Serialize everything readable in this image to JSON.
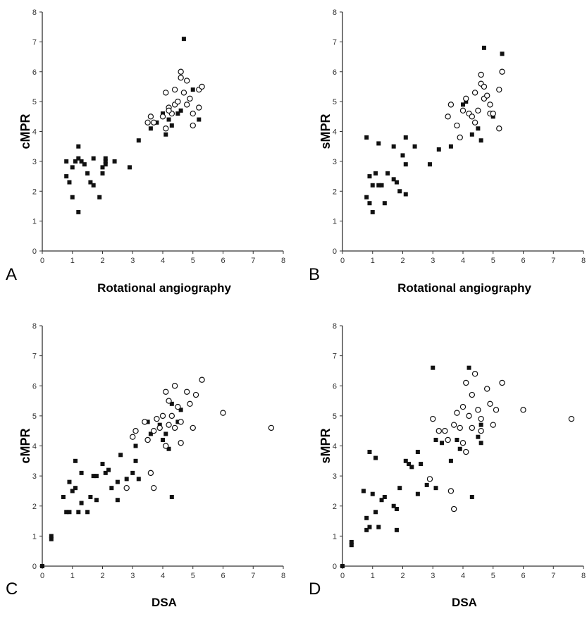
{
  "chart_data": [
    {
      "type": "scatter",
      "panel_label": "A",
      "xlabel": "Rotational angiography",
      "ylabel": "cMPR",
      "xlim": [
        0,
        8
      ],
      "ylim": [
        0,
        8
      ],
      "xticks": [
        "0",
        "1",
        "2",
        "3",
        "4",
        "5",
        "6",
        "7",
        "8"
      ],
      "yticks": [
        "0",
        "1",
        "2",
        "3",
        "4",
        "5",
        "6",
        "7",
        "8"
      ],
      "series": [
        {
          "marker": "filled-square",
          "points": [
            [
              0.8,
              3.0
            ],
            [
              0.8,
              2.5
            ],
            [
              0.9,
              2.3
            ],
            [
              1.0,
              1.8
            ],
            [
              1.0,
              2.8
            ],
            [
              1.1,
              3.0
            ],
            [
              1.2,
              3.1
            ],
            [
              1.2,
              3.5
            ],
            [
              1.2,
              1.3
            ],
            [
              1.3,
              3.0
            ],
            [
              1.4,
              2.9
            ],
            [
              1.5,
              2.6
            ],
            [
              1.6,
              2.3
            ],
            [
              1.7,
              2.2
            ],
            [
              1.7,
              3.1
            ],
            [
              1.9,
              1.8
            ],
            [
              2.0,
              2.6
            ],
            [
              2.0,
              2.8
            ],
            [
              2.1,
              3.0
            ],
            [
              2.1,
              3.1
            ],
            [
              2.1,
              2.9
            ],
            [
              2.4,
              3.0
            ],
            [
              2.9,
              2.8
            ],
            [
              3.2,
              3.7
            ],
            [
              3.6,
              4.1
            ],
            [
              3.8,
              4.3
            ],
            [
              4.0,
              4.6
            ],
            [
              4.1,
              3.9
            ],
            [
              4.2,
              4.4
            ],
            [
              4.3,
              4.2
            ],
            [
              4.5,
              4.6
            ],
            [
              4.6,
              4.7
            ],
            [
              4.7,
              7.1
            ],
            [
              5.0,
              5.4
            ],
            [
              5.2,
              4.4
            ]
          ]
        },
        {
          "marker": "open-circle",
          "points": [
            [
              3.5,
              4.3
            ],
            [
              3.6,
              4.5
            ],
            [
              3.7,
              4.3
            ],
            [
              4.0,
              4.5
            ],
            [
              4.1,
              5.3
            ],
            [
              4.1,
              4.1
            ],
            [
              4.2,
              4.8
            ],
            [
              4.3,
              4.6
            ],
            [
              4.4,
              5.4
            ],
            [
              4.4,
              4.9
            ],
            [
              4.5,
              5.0
            ],
            [
              4.6,
              5.8
            ],
            [
              4.6,
              6.0
            ],
            [
              4.7,
              5.3
            ],
            [
              4.8,
              5.7
            ],
            [
              4.8,
              4.9
            ],
            [
              4.9,
              5.1
            ],
            [
              5.0,
              4.6
            ],
            [
              5.0,
              4.2
            ],
            [
              5.2,
              4.8
            ],
            [
              5.2,
              5.4
            ],
            [
              5.3,
              5.5
            ],
            [
              4.2,
              4.7
            ]
          ]
        }
      ]
    },
    {
      "type": "scatter",
      "panel_label": "B",
      "xlabel": "Rotational angiography",
      "ylabel": "sMPR",
      "xlim": [
        0,
        8
      ],
      "ylim": [
        0,
        8
      ],
      "xticks": [
        "0",
        "1",
        "2",
        "3",
        "4",
        "5",
        "6",
        "7",
        "8"
      ],
      "yticks": [
        "0",
        "1",
        "2",
        "3",
        "4",
        "5",
        "6",
        "7",
        "8"
      ],
      "series": [
        {
          "marker": "filled-square",
          "points": [
            [
              0.8,
              1.8
            ],
            [
              0.8,
              3.8
            ],
            [
              0.9,
              2.5
            ],
            [
              0.9,
              1.6
            ],
            [
              1.0,
              1.3
            ],
            [
              1.0,
              2.2
            ],
            [
              1.1,
              2.6
            ],
            [
              1.2,
              2.2
            ],
            [
              1.2,
              3.6
            ],
            [
              1.3,
              2.2
            ],
            [
              1.4,
              1.6
            ],
            [
              1.5,
              2.6
            ],
            [
              1.7,
              2.4
            ],
            [
              1.7,
              3.5
            ],
            [
              1.8,
              2.3
            ],
            [
              1.9,
              2.0
            ],
            [
              2.0,
              3.2
            ],
            [
              2.1,
              2.9
            ],
            [
              2.1,
              3.8
            ],
            [
              2.1,
              1.9
            ],
            [
              2.4,
              3.5
            ],
            [
              2.9,
              2.9
            ],
            [
              3.2,
              3.4
            ],
            [
              3.6,
              3.5
            ],
            [
              4.0,
              4.9
            ],
            [
              4.1,
              5.0
            ],
            [
              4.3,
              3.9
            ],
            [
              4.5,
              4.1
            ],
            [
              4.6,
              3.7
            ],
            [
              4.7,
              6.8
            ],
            [
              5.0,
              4.5
            ],
            [
              5.3,
              6.6
            ]
          ]
        },
        {
          "marker": "open-circle",
          "points": [
            [
              3.5,
              4.5
            ],
            [
              3.6,
              4.9
            ],
            [
              3.8,
              4.2
            ],
            [
              3.9,
              3.8
            ],
            [
              4.0,
              4.7
            ],
            [
              4.1,
              5.1
            ],
            [
              4.2,
              4.6
            ],
            [
              4.3,
              4.5
            ],
            [
              4.4,
              5.3
            ],
            [
              4.5,
              4.7
            ],
            [
              4.6,
              5.6
            ],
            [
              4.6,
              5.9
            ],
            [
              4.7,
              5.1
            ],
            [
              4.8,
              5.2
            ],
            [
              4.9,
              4.9
            ],
            [
              4.9,
              4.6
            ],
            [
              5.0,
              4.6
            ],
            [
              5.2,
              4.1
            ],
            [
              5.2,
              5.4
            ],
            [
              5.3,
              6.0
            ],
            [
              4.7,
              5.5
            ],
            [
              4.4,
              4.3
            ]
          ]
        }
      ]
    },
    {
      "type": "scatter",
      "panel_label": "C",
      "xlabel": "DSA",
      "ylabel": "cMPR",
      "xlim": [
        0,
        8
      ],
      "ylim": [
        0,
        8
      ],
      "xticks": [
        "0",
        "1",
        "2",
        "3",
        "4",
        "5",
        "6",
        "7",
        "8"
      ],
      "yticks": [
        "0",
        "1",
        "2",
        "3",
        "4",
        "5",
        "6",
        "7",
        "8"
      ],
      "series": [
        {
          "marker": "filled-square",
          "points": [
            [
              0.0,
              0.0
            ],
            [
              0.3,
              0.9
            ],
            [
              0.3,
              1.0
            ],
            [
              0.7,
              2.3
            ],
            [
              0.8,
              1.8
            ],
            [
              0.9,
              1.8
            ],
            [
              0.9,
              2.8
            ],
            [
              1.0,
              2.5
            ],
            [
              1.1,
              2.6
            ],
            [
              1.1,
              3.5
            ],
            [
              1.2,
              1.8
            ],
            [
              1.3,
              2.1
            ],
            [
              1.3,
              3.1
            ],
            [
              1.5,
              1.8
            ],
            [
              1.6,
              2.3
            ],
            [
              1.7,
              3.0
            ],
            [
              1.8,
              2.2
            ],
            [
              1.8,
              3.0
            ],
            [
              2.0,
              3.4
            ],
            [
              2.1,
              3.1
            ],
            [
              2.2,
              3.2
            ],
            [
              2.3,
              2.6
            ],
            [
              2.5,
              2.2
            ],
            [
              2.5,
              2.8
            ],
            [
              2.6,
              3.7
            ],
            [
              2.8,
              2.9
            ],
            [
              3.0,
              3.1
            ],
            [
              3.1,
              3.5
            ],
            [
              3.1,
              4.0
            ],
            [
              3.2,
              2.9
            ],
            [
              3.5,
              4.8
            ],
            [
              3.6,
              4.4
            ],
            [
              3.9,
              4.7
            ],
            [
              4.0,
              4.2
            ],
            [
              4.1,
              4.4
            ],
            [
              4.2,
              3.9
            ],
            [
              4.3,
              5.4
            ],
            [
              4.3,
              2.3
            ],
            [
              4.5,
              4.8
            ],
            [
              4.6,
              5.2
            ]
          ]
        },
        {
          "marker": "open-circle",
          "points": [
            [
              2.8,
              2.6
            ],
            [
              3.0,
              4.3
            ],
            [
              3.1,
              4.5
            ],
            [
              3.4,
              4.8
            ],
            [
              3.5,
              4.2
            ],
            [
              3.6,
              3.1
            ],
            [
              3.7,
              2.6
            ],
            [
              3.7,
              4.5
            ],
            [
              3.8,
              4.9
            ],
            [
              3.9,
              4.6
            ],
            [
              4.0,
              5.0
            ],
            [
              4.1,
              5.8
            ],
            [
              4.1,
              4.0
            ],
            [
              4.2,
              5.5
            ],
            [
              4.2,
              4.7
            ],
            [
              4.3,
              5.0
            ],
            [
              4.4,
              6.0
            ],
            [
              4.4,
              4.6
            ],
            [
              4.5,
              5.3
            ],
            [
              4.6,
              4.8
            ],
            [
              4.6,
              4.1
            ],
            [
              4.8,
              5.8
            ],
            [
              4.9,
              5.4
            ],
            [
              5.0,
              4.6
            ],
            [
              5.1,
              5.7
            ],
            [
              5.3,
              6.2
            ],
            [
              6.0,
              5.1
            ],
            [
              7.6,
              4.6
            ]
          ]
        }
      ]
    },
    {
      "type": "scatter",
      "panel_label": "D",
      "xlabel": "DSA",
      "ylabel": "sMPR",
      "xlim": [
        0,
        8
      ],
      "ylim": [
        0,
        8
      ],
      "xticks": [
        "0",
        "1",
        "2",
        "3",
        "4",
        "5",
        "6",
        "7",
        "8"
      ],
      "yticks": [
        "0",
        "1",
        "2",
        "3",
        "4",
        "5",
        "6",
        "7",
        "8"
      ],
      "series": [
        {
          "marker": "filled-square",
          "points": [
            [
              0.0,
              0.0
            ],
            [
              0.3,
              0.7
            ],
            [
              0.3,
              0.8
            ],
            [
              0.7,
              2.5
            ],
            [
              0.8,
              1.2
            ],
            [
              0.8,
              1.6
            ],
            [
              0.9,
              1.3
            ],
            [
              0.9,
              3.8
            ],
            [
              1.0,
              2.4
            ],
            [
              1.1,
              1.8
            ],
            [
              1.1,
              3.6
            ],
            [
              1.2,
              1.3
            ],
            [
              1.3,
              2.2
            ],
            [
              1.4,
              2.3
            ],
            [
              1.7,
              2.0
            ],
            [
              1.8,
              1.2
            ],
            [
              1.8,
              1.9
            ],
            [
              1.9,
              2.6
            ],
            [
              2.1,
              3.5
            ],
            [
              2.2,
              3.4
            ],
            [
              2.3,
              3.3
            ],
            [
              2.5,
              2.4
            ],
            [
              2.5,
              3.8
            ],
            [
              2.6,
              3.4
            ],
            [
              2.8,
              2.7
            ],
            [
              2.9,
              2.9
            ],
            [
              3.0,
              6.6
            ],
            [
              3.1,
              2.6
            ],
            [
              3.1,
              4.2
            ],
            [
              3.3,
              4.1
            ],
            [
              3.4,
              4.5
            ],
            [
              3.6,
              3.5
            ],
            [
              3.8,
              4.2
            ],
            [
              3.9,
              3.9
            ],
            [
              4.2,
              6.6
            ],
            [
              4.3,
              2.3
            ],
            [
              4.5,
              4.3
            ],
            [
              4.6,
              4.1
            ],
            [
              4.6,
              4.7
            ]
          ]
        },
        {
          "marker": "open-circle",
          "points": [
            [
              2.9,
              2.9
            ],
            [
              3.0,
              4.9
            ],
            [
              3.2,
              4.5
            ],
            [
              3.4,
              4.5
            ],
            [
              3.5,
              4.2
            ],
            [
              3.6,
              2.5
            ],
            [
              3.7,
              1.9
            ],
            [
              3.7,
              4.7
            ],
            [
              3.8,
              5.1
            ],
            [
              3.9,
              4.6
            ],
            [
              4.0,
              5.3
            ],
            [
              4.0,
              4.1
            ],
            [
              4.1,
              6.1
            ],
            [
              4.1,
              3.8
            ],
            [
              4.2,
              5.0
            ],
            [
              4.3,
              5.7
            ],
            [
              4.3,
              4.6
            ],
            [
              4.4,
              6.4
            ],
            [
              4.5,
              5.2
            ],
            [
              4.6,
              4.9
            ],
            [
              4.6,
              4.5
            ],
            [
              4.8,
              5.9
            ],
            [
              4.9,
              5.4
            ],
            [
              5.0,
              4.7
            ],
            [
              5.1,
              5.2
            ],
            [
              5.3,
              6.1
            ],
            [
              6.0,
              5.2
            ],
            [
              7.6,
              4.9
            ]
          ]
        }
      ]
    }
  ]
}
